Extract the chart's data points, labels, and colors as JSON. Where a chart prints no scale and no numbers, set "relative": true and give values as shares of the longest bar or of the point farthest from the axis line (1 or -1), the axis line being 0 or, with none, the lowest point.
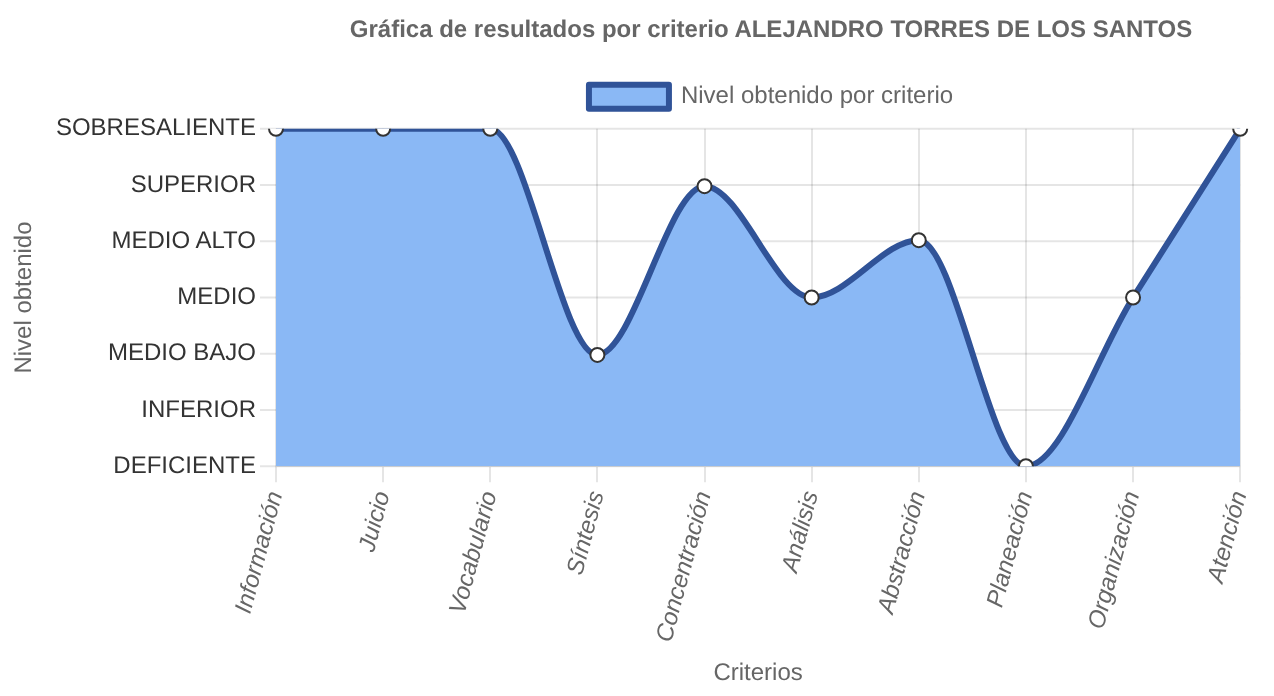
{
  "chart_data": {
    "type": "area",
    "title": "Gráfica de resultados por criterio ALEJANDRO TORRES DE LOS SANTOS",
    "xlabel": "Criterios",
    "categories": [
      "Información",
      "Juicio",
      "Vocabulario",
      "Síntesis",
      "Concentración",
      "Análisis",
      "Abstracción",
      "Planeación",
      "Organización",
      "Atención"
    ],
    "series": [
      {
        "name": "Nivel obtenido por criterio",
        "color": "#8ab8f5",
        "values": [
          1,
          1,
          1,
          0.33,
          0.83,
          0.5,
          0.67,
          0,
          0.5,
          1
        ]
      }
    ],
    "relative": true,
    "annotations": [
      "DEFICIENTE",
      "INFERIOR",
      "MEDIO BAJO",
      "MEDIO",
      "MEDIO ALTO",
      "SUPERIOR",
      "SOBRESALIENTE",
      {
        "text": "Nivel obtenido"
      }
    ],
    "grid": true,
    "legend": "top",
    "marker": "circle",
    "line_style": "solid"
  }
}
